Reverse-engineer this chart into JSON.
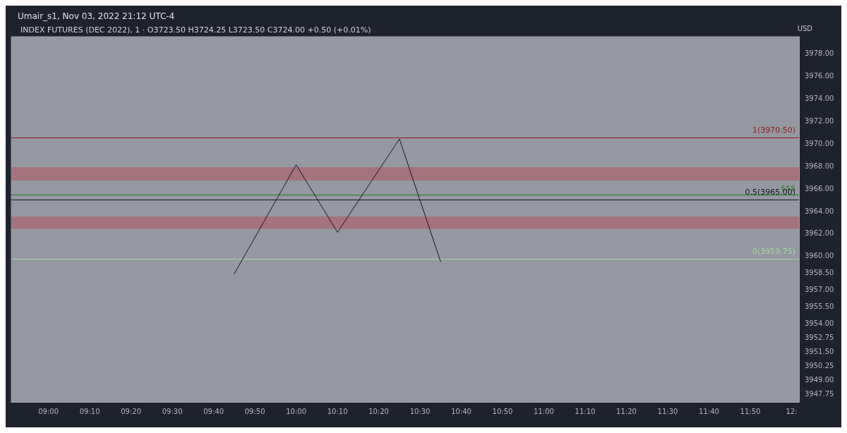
{
  "chart_data": {
    "type": "line",
    "title": "Umair_s1, Nov 03, 2022 21:12 UTC-4",
    "subtitle": "INDEX FUTURES (DEC 2022), 1 · O3723.50 H3724.25 L3723.50 C3724.00 +0.50 (+0.01%)",
    "ylabel": "USD",
    "x": [
      9.75,
      10.0,
      10.167,
      10.417,
      10.583
    ],
    "series": [
      {
        "color": "#131722",
        "values": [
          3958.4,
          3968.1,
          3962.1,
          3970.4,
          3959.5
        ]
      }
    ],
    "xlim": [
      8.85,
      12.03
    ],
    "xticks": [
      {
        "value": 9,
        "label": "09:00"
      },
      {
        "value": 9.1667,
        "label": "09:10"
      },
      {
        "value": 9.3333,
        "label": "09:20"
      },
      {
        "value": 9.5,
        "label": "09:30"
      },
      {
        "value": 9.6667,
        "label": "09:40"
      },
      {
        "value": 9.8333,
        "label": "09:50"
      },
      {
        "value": 10,
        "label": "10:00"
      },
      {
        "value": 10.1667,
        "label": "10:10"
      },
      {
        "value": 10.3333,
        "label": "10:20"
      },
      {
        "value": 10.5,
        "label": "10:30"
      },
      {
        "value": 10.6667,
        "label": "10:40"
      },
      {
        "value": 10.8333,
        "label": "10:50"
      },
      {
        "value": 11,
        "label": "11:00"
      },
      {
        "value": 11.1667,
        "label": "11:10"
      },
      {
        "value": 11.3333,
        "label": "11:20"
      },
      {
        "value": 11.5,
        "label": "11:30"
      },
      {
        "value": 11.6667,
        "label": "11:40"
      },
      {
        "value": 11.8333,
        "label": "11:50"
      },
      {
        "value": 12,
        "label": "12:"
      }
    ],
    "ylim": [
      3947,
      3979.5
    ],
    "yticks": [
      {
        "value": 3947.75,
        "label": "3947.75"
      },
      {
        "value": 3949,
        "label": "3949.00"
      },
      {
        "value": 3950.25,
        "label": "3950.25"
      },
      {
        "value": 3951.5,
        "label": "3951.50"
      },
      {
        "value": 3952.75,
        "label": "3952.75"
      },
      {
        "value": 3954,
        "label": "3954.00"
      },
      {
        "value": 3955.5,
        "label": "3955.50"
      },
      {
        "value": 3957,
        "label": "3957.00"
      },
      {
        "value": 3958.5,
        "label": "3958.50"
      },
      {
        "value": 3960,
        "label": "3960.00"
      },
      {
        "value": 3962,
        "label": "3962.00"
      },
      {
        "value": 3964,
        "label": "3964.00"
      },
      {
        "value": 3966,
        "label": "3966.00"
      },
      {
        "value": 3968,
        "label": "3968.00"
      },
      {
        "value": 3970,
        "label": "3970.00"
      },
      {
        "value": 3972,
        "label": "3972.00"
      },
      {
        "value": 3974,
        "label": "3974.00"
      },
      {
        "value": 3976,
        "label": "3976.00"
      },
      {
        "value": 3978,
        "label": "3978.00"
      }
    ],
    "ref_lines": [
      {
        "axis": "y",
        "value": 3970.5,
        "label": "1(3970.50)",
        "color": "#8e1b1b"
      },
      {
        "axis": "y",
        "value": 3965.4,
        "label": "$$$",
        "color": "#2e7d32"
      },
      {
        "axis": "y",
        "value": 3965.0,
        "label": "0.5(3965.00)",
        "color": "#131722"
      },
      {
        "axis": "y",
        "value": 3959.75,
        "label": "0(3959.75)",
        "color": "#a5d6a7"
      }
    ],
    "bands": [
      {
        "axis": "y",
        "from": 3966.7,
        "to": 3967.9,
        "color": "#a86a74"
      },
      {
        "axis": "y",
        "from": 3962.4,
        "to": 3963.5,
        "color": "#a86a74"
      }
    ],
    "marker": "none",
    "line_style": "solid",
    "grid": false
  }
}
